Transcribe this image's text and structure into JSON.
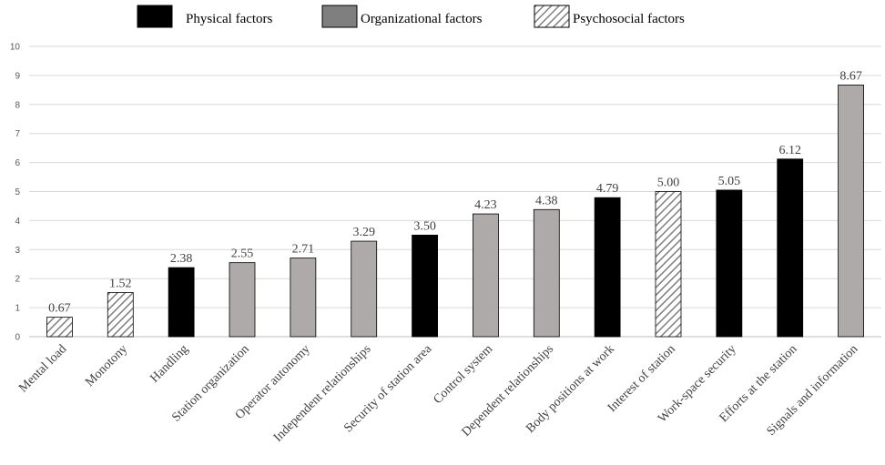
{
  "legend": {
    "items": [
      {
        "label": "Physical factors",
        "style": "solid",
        "color": "#000000"
      },
      {
        "label": "Organizational factors",
        "style": "solid",
        "color": "#7f7f7f"
      },
      {
        "label": "Psychosocial factors",
        "style": "hatched",
        "color": "#ffffff"
      }
    ]
  },
  "colors": {
    "physical": "#000000",
    "organizational": "#aeaaaa",
    "hatch_line": "#7f7f7f",
    "gridline": "#d9d9d9",
    "axis": "#bfbfbf",
    "text": "#404040"
  },
  "chart_data": {
    "type": "bar",
    "title": "",
    "xlabel": "",
    "ylabel": "",
    "ylim": [
      0,
      10
    ],
    "yticks": [
      0,
      1,
      2,
      3,
      4,
      5,
      6,
      7,
      8,
      9,
      10
    ],
    "grid": true,
    "legend_position": "top",
    "categories": [
      "Mental load",
      "Monotony",
      "Handling",
      "Station organization",
      "Operator autonomy",
      "Independent relationships",
      "Security of station area",
      "Control system",
      "Dependent relationships",
      "Body positions at work",
      "Interest of station",
      "Work-space security",
      "Efforts at the station",
      "Signals and information"
    ],
    "values": [
      0.67,
      1.52,
      2.38,
      2.55,
      2.71,
      3.29,
      3.5,
      4.23,
      4.38,
      4.79,
      5.0,
      5.05,
      6.12,
      8.67
    ],
    "value_labels": [
      "0.67",
      "1.52",
      "2.38",
      "2.55",
      "2.71",
      "3.29",
      "3.50",
      "4.23",
      "4.38",
      "4.79",
      "5.00",
      "5.05",
      "6.12",
      "8.67"
    ],
    "factor_groups": [
      "Psychosocial factors",
      "Psychosocial factors",
      "Physical factors",
      "Organizational factors",
      "Organizational factors",
      "Organizational factors",
      "Physical factors",
      "Organizational factors",
      "Organizational factors",
      "Physical factors",
      "Psychosocial factors",
      "Physical factors",
      "Physical factors",
      "Organizational factors"
    ]
  }
}
